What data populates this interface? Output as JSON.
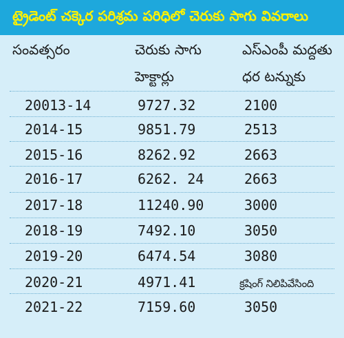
{
  "title": "ట్రైడెంట్ చక్కెర పరిశ్రమ పరిధిలో చెరుకు సాగు వివరాలు",
  "columns": {
    "year": [
      "సంవత్సరం"
    ],
    "area": [
      "చెరుకు సాగు",
      "హెక్టార్లు"
    ],
    "price": [
      "ఎస్‌ఎంపీ మద్దతు",
      "ధర టన్నుకు"
    ]
  },
  "rows": [
    {
      "year": "20013-14",
      "area": "9727.32",
      "price": "2100"
    },
    {
      "year": "2014-15",
      "area": "9851.79",
      "price": "2513"
    },
    {
      "year": "2015-16",
      "area": "8262.92",
      "price": "2663"
    },
    {
      "year": "2016-17",
      "area": "6262. 24",
      "price": "2663"
    },
    {
      "year": "2017-18",
      "area": "11240.90",
      "price": "3000"
    },
    {
      "year": "2018-19",
      "area": "7492.10",
      "price": "3050"
    },
    {
      "year": "2019-20",
      "area": "6474.54",
      "price": "3080"
    },
    {
      "year": "2020-21",
      "area": "4971.41",
      "price": "క్రషింగ్ నిలిపివేసింది"
    },
    {
      "year": "2021-22",
      "area": "7159.60",
      "price": "3050"
    }
  ],
  "colors": {
    "title_background": "#1ea8dc",
    "title_text": "#fff200",
    "table_background": "#d6eef9",
    "rule": "#6aaed0"
  }
}
